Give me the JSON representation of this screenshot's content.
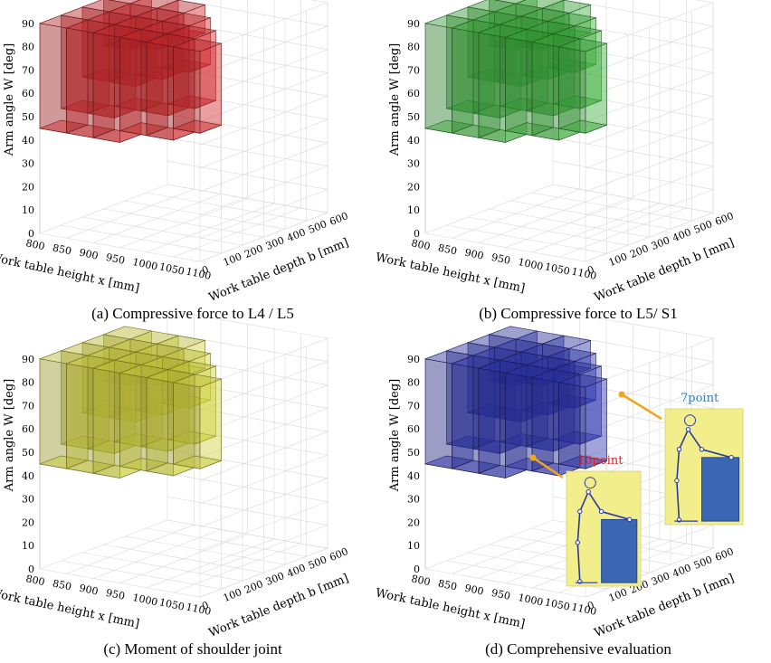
{
  "figure": {
    "panels": [
      {
        "id": "a",
        "caption": "(a) Compressive force to L4 / L5",
        "color": "#c8282c"
      },
      {
        "id": "b",
        "caption": "(b) Compressive force to L5/ S1",
        "color": "#3aa73a"
      },
      {
        "id": "c",
        "caption": "(c) Moment of shoulder joint",
        "color": "#c9c93a"
      },
      {
        "id": "d",
        "caption": "(d) Comprehensive evaluation",
        "color": "#2d33a8"
      }
    ],
    "annotations": {
      "callout_10": "10point",
      "callout_7": "7point",
      "callout_10_color": "#d0222a",
      "callout_7_color": "#2a7fc1",
      "inset_bg": "#f2ee8c",
      "arrow_color": "#f2a51e",
      "box_color": "#3a66b3",
      "figure_color": "#2d3b9a"
    }
  },
  "chart_data": [
    {
      "type": "3d-bar",
      "title": "",
      "zlabel": "Arm angle W [deg]",
      "xlabel": "Work table height x [mm]",
      "ylabel": "Work table depth b [mm]",
      "z_ticks": [
        "0",
        "10",
        "20",
        "30",
        "40",
        "50",
        "60",
        "70",
        "80",
        "90"
      ],
      "x_ticks": [
        "800",
        "850",
        "900",
        "950",
        "1000",
        "1050",
        "1100"
      ],
      "y_ticks": [
        "0",
        "100",
        "200",
        "300",
        "400",
        "500",
        "600"
      ],
      "zlim": [
        0,
        90
      ],
      "xlim": [
        800,
        1100
      ],
      "ylim": [
        0,
        600
      ],
      "heights": [
        50,
        50,
        55,
        50,
        50,
        55,
        55,
        55,
        60,
        65,
        70,
        80,
        85
      ],
      "description_rows": "front row boxes reach down to ~45-50 deg, rear rows shorter; all tops at 90 deg"
    },
    {
      "type": "3d-bar",
      "zlabel": "Arm angle W [deg]",
      "xlabel": "Work table height x [mm]",
      "ylabel": "Work table depth b [mm]",
      "z_ticks": [
        "0",
        "10",
        "20",
        "30",
        "40",
        "50",
        "60",
        "70",
        "80",
        "90"
      ],
      "x_ticks": [
        "800",
        "850",
        "900",
        "950",
        "1000",
        "1050",
        "1100"
      ],
      "y_ticks": [
        "0",
        "100",
        "200",
        "300",
        "400",
        "500",
        "600"
      ],
      "zlim": [
        0,
        90
      ],
      "xlim": [
        800,
        1100
      ],
      "ylim": [
        0,
        600
      ]
    },
    {
      "type": "3d-bar",
      "zlabel": "Arm angle W [deg]",
      "xlabel": "Work table height x [mm]",
      "ylabel": "Work table depth b [mm]",
      "z_ticks": [
        "0",
        "10",
        "20",
        "30",
        "40",
        "50",
        "60",
        "70",
        "80",
        "90"
      ],
      "x_ticks": [
        "800",
        "850",
        "900",
        "950",
        "1000",
        "1050",
        "1100"
      ],
      "y_ticks": [
        "0",
        "100",
        "200",
        "300",
        "400",
        "500",
        "600"
      ],
      "zlim": [
        0,
        90
      ],
      "xlim": [
        800,
        1100
      ],
      "ylim": [
        0,
        600
      ]
    },
    {
      "type": "3d-bar",
      "zlabel": "Arm angle W [deg]",
      "xlabel": "Work table height x [mm]",
      "ylabel": "Work table depth b [mm]",
      "z_ticks": [
        "0",
        "10",
        "20",
        "30",
        "40",
        "50",
        "60",
        "70",
        "80",
        "90"
      ],
      "x_ticks": [
        "800",
        "850",
        "900",
        "950",
        "1000",
        "1050",
        "1100"
      ],
      "y_ticks": [
        "0",
        "100",
        "200",
        "300",
        "400",
        "500",
        "600"
      ],
      "zlim": [
        0,
        90
      ],
      "xlim": [
        800,
        1100
      ],
      "ylim": [
        0,
        600
      ]
    }
  ]
}
